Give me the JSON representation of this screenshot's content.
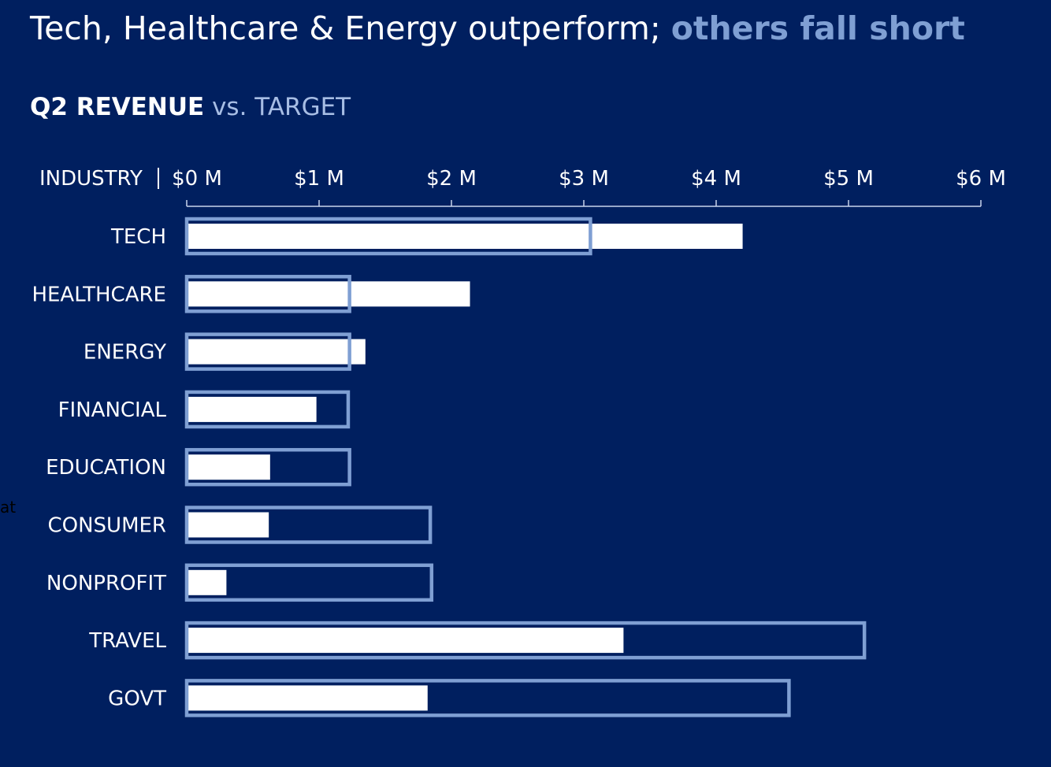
{
  "title": {
    "main": "Tech, Healthcare & Energy outperform; ",
    "highlight": "others fall short"
  },
  "subtitle": {
    "strong": "Q2 REVENUE",
    "soft": " vs. TARGET"
  },
  "stray_text": "at",
  "colors": {
    "background": "#001f5f",
    "actual_bar": "#ffffff",
    "target_outline": "#7f9fd3",
    "text": "#ffffff"
  },
  "chart_data": {
    "type": "bar",
    "orientation": "horizontal",
    "category_header": "INDUSTRY",
    "categories": [
      "TECH",
      "HEALTHCARE",
      "ENERGY",
      "FINANCIAL",
      "EDUCATION",
      "CONSUMER",
      "NONPROFIT",
      "TRAVEL",
      "GOVT"
    ],
    "series": [
      {
        "name": "Q2 REVENUE",
        "values": [
          4.2,
          2.14,
          1.35,
          0.98,
          0.63,
          0.62,
          0.3,
          3.3,
          1.82
        ]
      },
      {
        "name": "TARGET",
        "values": [
          3.05,
          1.23,
          1.23,
          1.22,
          1.23,
          1.84,
          1.85,
          5.12,
          4.55
        ]
      }
    ],
    "x_ticks": [
      0,
      1,
      2,
      3,
      4,
      5,
      6
    ],
    "x_tick_labels": [
      "$0 M",
      "$1 M",
      "$2 M",
      "$3 M",
      "$4 M",
      "$5 M",
      "$6 M"
    ],
    "xlim": [
      0,
      6
    ],
    "axis_position": "top",
    "grid": false,
    "legend": "none"
  }
}
